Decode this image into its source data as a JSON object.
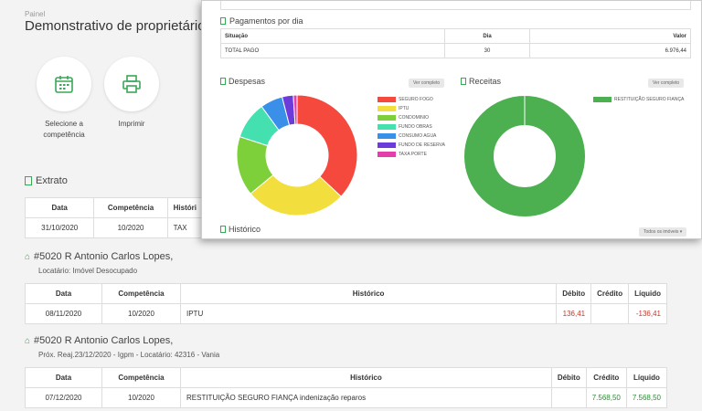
{
  "breadcrumb": "Painel",
  "page_title": "Demonstrativo de proprietário",
  "actions": {
    "select_label_1": "Selecione a",
    "select_label_2": "competência",
    "print_label": "Imprimir"
  },
  "extrato": {
    "title": "Extrato",
    "headers": [
      "Data",
      "Competência",
      "Históri"
    ],
    "row": [
      "31/10/2020",
      "10/2020",
      "TAX"
    ]
  },
  "property1": {
    "title": "#5020 R Antonio Carlos Lopes,",
    "subtitle": "Locatário: Imóvel Desocupado",
    "headers": [
      "Data",
      "Competência",
      "Histórico",
      "Débito",
      "Crédito",
      "Líquido"
    ],
    "row": [
      "08/11/2020",
      "10/2020",
      "IPTU",
      "136,41",
      "",
      "-136,41"
    ]
  },
  "property2": {
    "title": "#5020 R Antonio Carlos Lopes,",
    "subtitle": "Próx. Reaj.23/12/2020 - Igpm - Locatário: 42316 - Vania",
    "headers": [
      "Data",
      "Competência",
      "Histórico",
      "Débito",
      "Crédito",
      "Líquido"
    ],
    "row": [
      "07/12/2020",
      "10/2020",
      "RESTITUIÇÃO SEGURO FIANÇA indenização reparos",
      "",
      "7.568,50",
      "7.568,50"
    ]
  },
  "modal": {
    "payments_title": "Pagamentos por dia",
    "pay_headers": [
      "Situação",
      "Dia",
      "Valor"
    ],
    "pay_row": [
      "TOTAL PAGO",
      "30",
      "6.976,44"
    ],
    "despesas_title": "Despesas",
    "receitas_title": "Receitas",
    "view_button": "Ver completo",
    "historico_title": "Histórico",
    "all_properties_button": "Todos os imóveis"
  },
  "chart_data": [
    {
      "type": "pie",
      "title": "Despesas",
      "categories": [
        "SEGURO FOGO",
        "IPTU",
        "CONDOMINIO",
        "FUNDO OBRAS",
        "CONSUMO AGUA",
        "FUNDO DE RESERVA",
        "TAXA PORTE"
      ],
      "values": [
        37,
        27,
        16,
        10,
        6,
        3,
        1
      ],
      "colors": [
        "#f4493c",
        "#f2de3d",
        "#7ed03a",
        "#45e0b0",
        "#3a8fe8",
        "#6b3cd9",
        "#e23fa8"
      ]
    },
    {
      "type": "pie",
      "title": "Receitas",
      "categories": [
        "RESTITUIÇÃO SEGURO FIANÇA"
      ],
      "values": [
        100
      ],
      "colors": [
        "#4caf50"
      ]
    }
  ]
}
